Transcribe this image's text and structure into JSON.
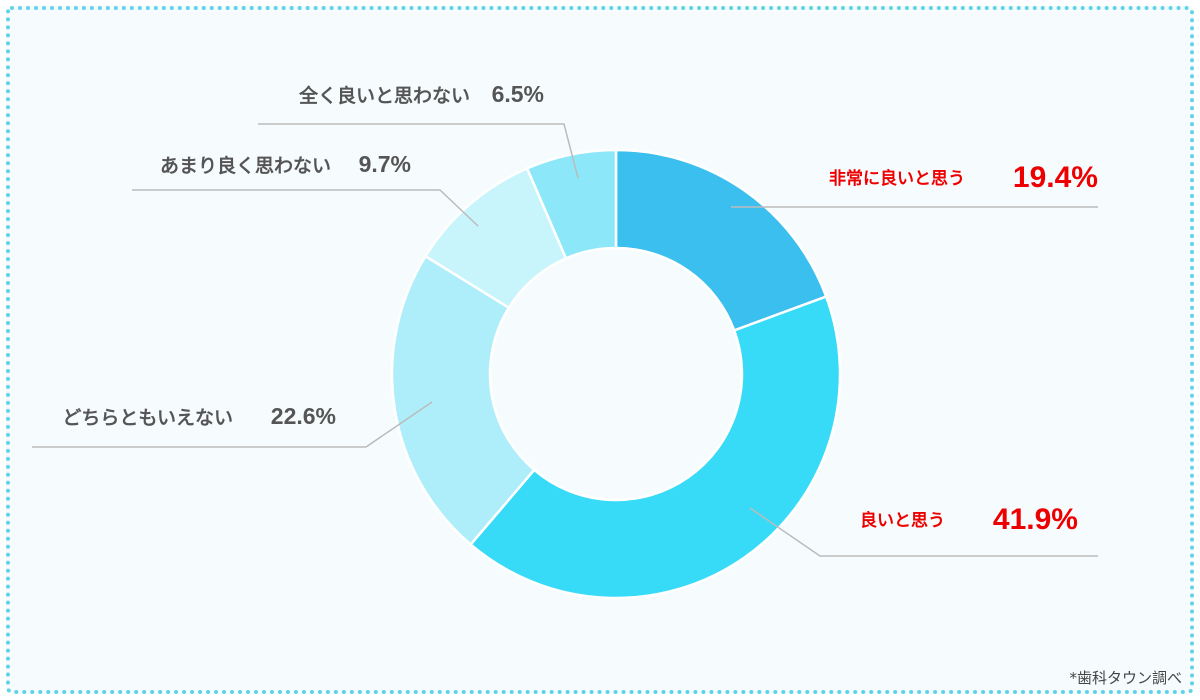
{
  "chart_data": {
    "type": "pie",
    "variant": "donut",
    "categories": [
      "非常に良いと思う",
      "良いと思う",
      "どちらともいえない",
      "あまり良く思わない",
      "全く良いと思わない"
    ],
    "values": [
      19.4,
      41.9,
      22.6,
      9.7,
      6.5
    ],
    "value_labels": [
      "19.4%",
      "41.9%",
      "22.6%",
      "9.7%",
      "6.5%"
    ],
    "colors": [
      "#3bbfee",
      "#38dbf7",
      "#aeeefa",
      "#c8f5fb",
      "#8ce8f9"
    ],
    "highlight_color": "#ee0000",
    "normal_label_color": "#555555",
    "highlighted": [
      true,
      true,
      false,
      false,
      false
    ],
    "start": "top (12 o'clock), clockwise",
    "legend": "none (leader-line labels)"
  },
  "source_note": "*歯科タウン調べ",
  "colors": {
    "frame_border": "#5fd3e8",
    "background": "#f6fcfe",
    "leader_line": "#bbbbbb"
  }
}
